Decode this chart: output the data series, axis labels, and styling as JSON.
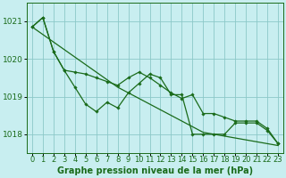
{
  "title": "Graphe pression niveau de la mer (hPa)",
  "bg_color": "#c8eef0",
  "grid_color": "#8cc8c8",
  "line_color": "#1a6b1a",
  "hours": [
    0,
    1,
    2,
    3,
    4,
    5,
    6,
    7,
    8,
    9,
    10,
    11,
    12,
    13,
    14,
    15,
    16,
    17,
    18,
    19,
    20,
    21,
    22,
    23
  ],
  "series_jagged": [
    1020.85,
    1021.1,
    1020.2,
    1019.7,
    1019.25,
    1018.8,
    1018.6,
    1018.85,
    1018.7,
    1019.1,
    1019.35,
    1019.6,
    1019.5,
    1019.05,
    1019.05,
    1018.0,
    1018.0,
    1018.0,
    1018.0,
    1018.3,
    1018.3,
    1018.3,
    1018.1,
    1017.75
  ],
  "series_upper": [
    1020.85,
    1021.1,
    1020.2,
    1019.7,
    1019.65,
    1019.6,
    1019.5,
    1019.4,
    1019.3,
    1019.5,
    1019.65,
    1019.5,
    1019.3,
    1019.1,
    1018.95,
    1019.05,
    1018.55,
    1018.55,
    1018.45,
    1018.35,
    1018.35,
    1018.35,
    1018.15,
    1017.75
  ],
  "series_trend": [
    1020.85,
    1020.65,
    1020.45,
    1020.25,
    1020.05,
    1019.85,
    1019.65,
    1019.45,
    1019.25,
    1019.1,
    1018.95,
    1018.8,
    1018.65,
    1018.5,
    1018.35,
    1018.2,
    1018.05,
    1018.0,
    1017.95,
    1017.9,
    1017.85,
    1017.8,
    1017.75,
    1017.7
  ],
  "ylim": [
    1017.5,
    1021.5
  ],
  "yticks": [
    1018,
    1019,
    1020,
    1021
  ],
  "markersize": 1.8,
  "linewidth": 0.9,
  "tick_fontsize": 6,
  "xlabel_fontsize": 7,
  "ylabel_fontsize": 6.5
}
